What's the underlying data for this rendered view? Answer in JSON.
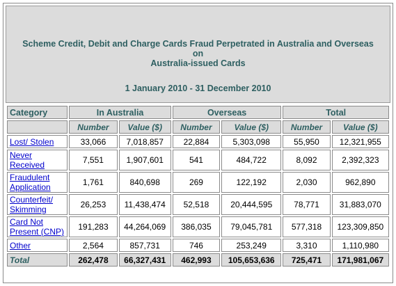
{
  "title": {
    "line1": "Scheme Credit, Debit and Charge Cards Fraud Perpetrated in Australia and Overseas",
    "line2": "on",
    "line3": "Australia-issued Cards",
    "period": "1 January 2010 - 31 December 2010"
  },
  "headers": {
    "category": "Category",
    "in_australia": "In Australia",
    "overseas": "Overseas",
    "total": "Total",
    "number": "Number",
    "value": "Value ($)"
  },
  "rows": [
    {
      "label": "Lost/ Stolen",
      "au_n": "33,066",
      "au_v": "7,018,857",
      "os_n": "22,884",
      "os_v": "5,303,098",
      "t_n": "55,950",
      "t_v": "12,321,955"
    },
    {
      "label": "Never Received",
      "au_n": "7,551",
      "au_v": "1,907,601",
      "os_n": "541",
      "os_v": "484,722",
      "t_n": "8,092",
      "t_v": "2,392,323"
    },
    {
      "label": "Fraudulent Application",
      "au_n": "1,761",
      "au_v": "840,698",
      "os_n": "269",
      "os_v": "122,192",
      "t_n": "2,030",
      "t_v": "962,890"
    },
    {
      "label": "Counterfeit/ Skimming",
      "au_n": "26,253",
      "au_v": "11,438,474",
      "os_n": "52,518",
      "os_v": "20,444,595",
      "t_n": "78,771",
      "t_v": "31,883,070"
    },
    {
      "label": "Card Not Present (CNP)",
      "au_n": "191,283",
      "au_v": "44,264,069",
      "os_n": "386,035",
      "os_v": "79,045,781",
      "t_n": "577,318",
      "t_v": "123,309,850"
    },
    {
      "label": "Other",
      "au_n": "2,564",
      "au_v": "857,731",
      "os_n": "746",
      "os_v": "253,249",
      "t_n": "3,310",
      "t_v": "1,110,980"
    }
  ],
  "total_row": {
    "label": "Total",
    "au_n": "262,478",
    "au_v": "66,327,431",
    "os_n": "462,993",
    "os_v": "105,653,636",
    "t_n": "725,471",
    "t_v": "171,981,067"
  }
}
